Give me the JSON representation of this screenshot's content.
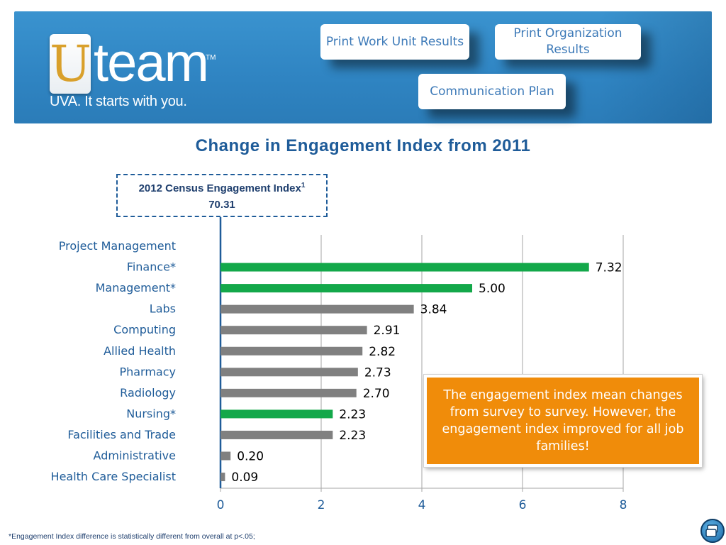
{
  "header": {
    "logo_letter": "U",
    "logo_word": "team",
    "logo_tm": "TM",
    "tagline": "UVA. It starts with you.",
    "buttons": {
      "print_work_unit": "Print Work Unit Results",
      "print_organization": "Print Organization Results",
      "communication_plan": "Communication Plan"
    }
  },
  "census": {
    "label": "2012 Census  Engagement Index",
    "superscript": "1",
    "value": "70.31"
  },
  "callout": "The engagement index mean changes from survey to survey. However, the engagement index improved for all job families!",
  "footnote": "*Engagement Index difference is statistically different from overall at p<.05;",
  "colors": {
    "banner": "#2f84c2",
    "title": "#1f5c99",
    "significant": "#13a84a",
    "normal": "#808080",
    "callout": "#f08c0a"
  },
  "icons": {
    "help": "monitor-help-icon"
  },
  "chart_data": {
    "type": "bar",
    "orientation": "horizontal",
    "title": "Change in Engagement Index from 2011",
    "xlabel": "",
    "ylabel": "",
    "xlim": [
      0,
      8
    ],
    "xticks": [
      0,
      2,
      4,
      6,
      8
    ],
    "grid": true,
    "categories": [
      "Project Management",
      "Finance*",
      "Management*",
      "Labs",
      "Computing",
      "Allied Health",
      "Pharmacy",
      "Radiology",
      "Nursing*",
      "Facilities and Trade",
      "Administrative",
      "Health Care Specialist"
    ],
    "values": [
      0,
      7.32,
      5.0,
      3.84,
      2.91,
      2.82,
      2.73,
      2.7,
      2.23,
      2.23,
      0.2,
      0.09
    ],
    "value_labels": [
      "",
      "7.32",
      "5.00",
      "3.84",
      "2.91",
      "2.82",
      "2.73",
      "2.70",
      "2.23",
      "2.23",
      "0.20",
      "0.09"
    ],
    "significant": [
      false,
      true,
      true,
      false,
      false,
      false,
      false,
      false,
      true,
      false,
      false,
      false
    ]
  }
}
